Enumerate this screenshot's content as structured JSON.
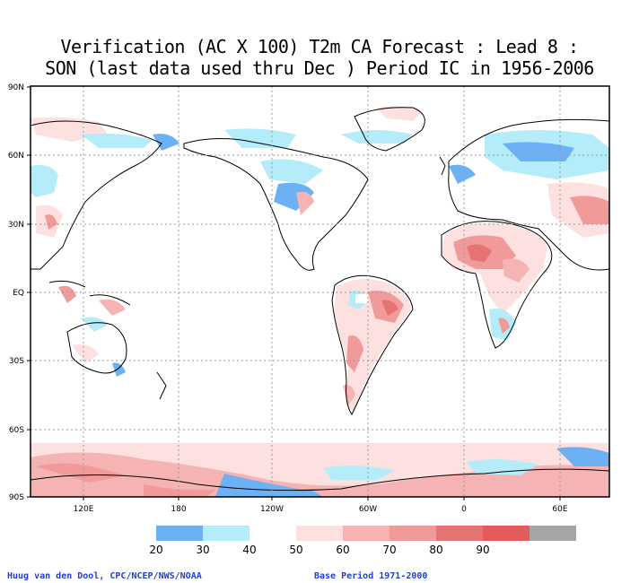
{
  "title": {
    "line1": "Verification (AC X 100) T2m CA Forecast : Lead 8 :",
    "line2": "SON (last data used thru Dec ) Period IC in 1956-2006"
  },
  "lat_labels": [
    "90N",
    "60N",
    "30N",
    "EQ",
    "30S",
    "60S",
    "90S"
  ],
  "lon_labels": [
    "120E",
    "180",
    "120W",
    "60W",
    "0",
    "60E"
  ],
  "legend": {
    "labels": [
      "20",
      "30",
      "40",
      "50",
      "60",
      "70",
      "80",
      "90"
    ],
    "colors": [
      "#6db1f5",
      "#b4ecfa",
      "#ffffff",
      "#fde0e0",
      "#f6b3b3",
      "#f09a9a",
      "#e57373",
      "#e45b5b",
      "#a6a6a6"
    ]
  },
  "footer": {
    "credit": "Huug van den Dool, CPC/NCEP/NWS/NOAA",
    "base_period": "Base Period 1971-2000"
  }
}
